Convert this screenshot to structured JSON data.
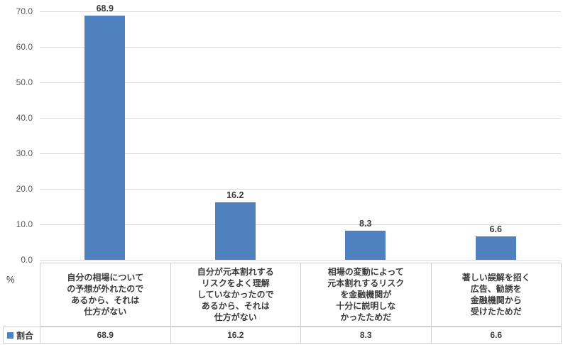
{
  "chart": {
    "y_axis_unit": "%",
    "legend_label": "割合",
    "colors": {
      "bar": "#4E81BD",
      "gridline": "#D9D9D9",
      "table_border": "#D0D0D0",
      "tick_text": "#595959",
      "label_text": "#3B3B3B"
    }
  },
  "chart_data": {
    "type": "bar",
    "title": "",
    "xlabel": "",
    "ylabel": "%",
    "ylim": [
      0,
      70
    ],
    "ytick_step": 10,
    "yticks": [
      "70.0",
      "60.0",
      "50.0",
      "40.0",
      "30.0",
      "20.0",
      "10.0",
      "0.0"
    ],
    "grid": true,
    "legend_position": "bottom-data-table",
    "categories": [
      "自分の相場についての予想が外れたのであるから、それは仕方がない",
      "自分が元本割れするリスクをよく理解していなかったのであるから、それは仕方がない",
      "相場の変動によって元本割れするリスクを金融機関が十分に説明しなかったためだ",
      "著しい誤解を招く広告、勧誘を金融機関から受けたためだ"
    ],
    "categories_lines": [
      [
        "自分の相場について",
        "の予想が外れたので",
        "あるから、それは",
        "仕方がない"
      ],
      [
        "自分が元本割れする",
        "リスクをよく理解",
        "していなかったので",
        "あるから、それは",
        "仕方がない"
      ],
      [
        "相場の変動によって",
        "元本割れするリスク",
        "を金融機関が",
        "十分に説明しな",
        "かったためだ"
      ],
      [
        "著しい誤解を招く",
        "広告、勧誘を",
        "金融機関から",
        "受けたためだ"
      ]
    ],
    "series": [
      {
        "name": "割合",
        "values": [
          68.9,
          16.2,
          8.3,
          6.6
        ],
        "labels": [
          "68.9",
          "16.2",
          "8.3",
          "6.6"
        ]
      }
    ]
  }
}
